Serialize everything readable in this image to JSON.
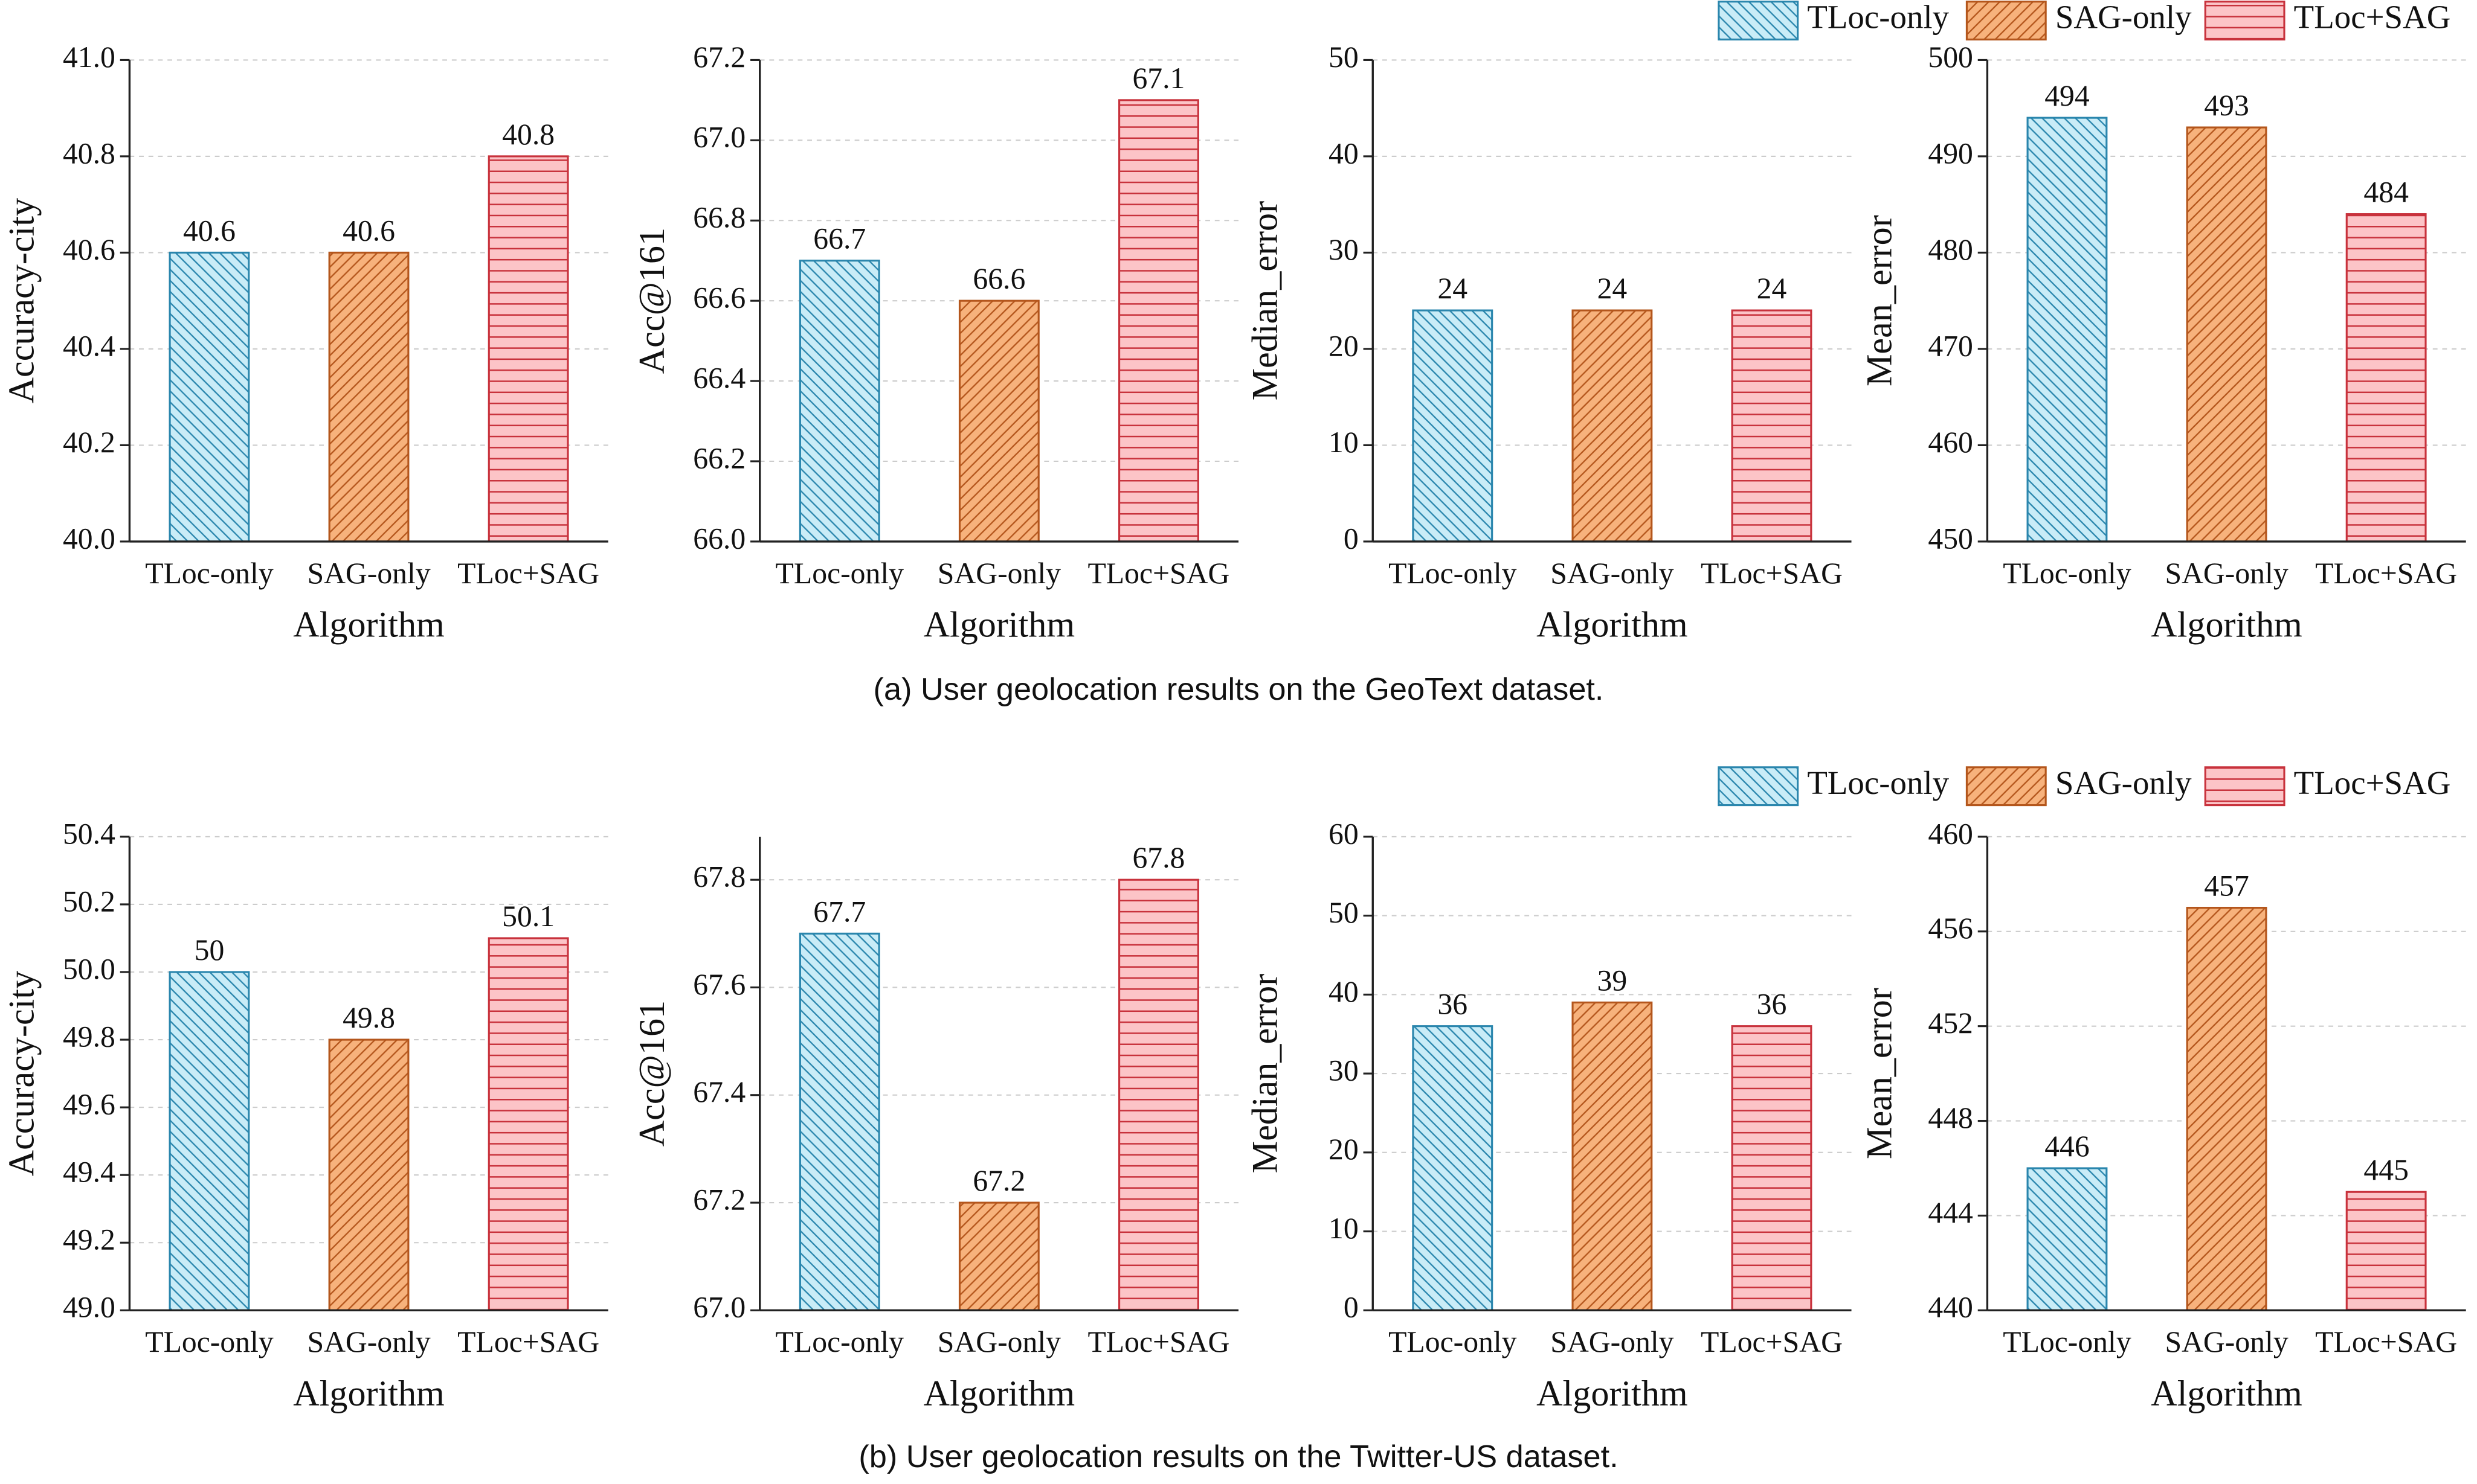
{
  "chart_data": [
    {
      "type": "bar",
      "ylabel": "Accuracy-city",
      "xlabel": "Algorithm",
      "categories": [
        "TLoc-only",
        "SAG-only",
        "TLoc+SAG"
      ],
      "values": [
        40.6,
        40.6,
        40.8
      ],
      "colors": [
        "#c9ecf7",
        "#f7b27c",
        "#fcc4c7"
      ],
      "edge_colors": [
        "#2a86ad",
        "#b4561c",
        "#c8323c"
      ],
      "hatches": [
        "backslash",
        "slash",
        "horizontal"
      ],
      "ylim": [
        40,
        41
      ],
      "yticks": [
        {
          "value": 40,
          "label": "40.0"
        },
        40.2,
        40.4,
        40.6,
        40.8,
        {
          "value": 41,
          "label": "41.0"
        }
      ],
      "grid": true
    },
    {
      "type": "bar",
      "ylabel": "Acc@161",
      "xlabel": "Algorithm",
      "categories": [
        "TLoc-only",
        "SAG-only",
        "TLoc+SAG"
      ],
      "values": [
        66.7,
        66.6,
        67.1
      ],
      "colors": [
        "#c9ecf7",
        "#f7b27c",
        "#fcc4c7"
      ],
      "edge_colors": [
        "#2a86ad",
        "#b4561c",
        "#c8323c"
      ],
      "hatches": [
        "backslash",
        "slash",
        "horizontal"
      ],
      "ylim": [
        66,
        67.2
      ],
      "yticks": [
        {
          "value": 66,
          "label": "66.0"
        },
        66.2,
        66.4,
        66.6,
        66.8,
        {
          "value": 67,
          "label": "67.0"
        },
        67.2
      ],
      "grid": true
    },
    {
      "type": "bar",
      "ylabel": "Median_error",
      "xlabel": "Algorithm",
      "categories": [
        "TLoc-only",
        "SAG-only",
        "TLoc+SAG"
      ],
      "values": [
        24,
        24,
        24
      ],
      "colors": [
        "#c9ecf7",
        "#f7b27c",
        "#fcc4c7"
      ],
      "edge_colors": [
        "#2a86ad",
        "#b4561c",
        "#c8323c"
      ],
      "hatches": [
        "backslash",
        "slash",
        "horizontal"
      ],
      "ylim": [
        0,
        50
      ],
      "yticks": [
        0,
        10,
        20,
        30,
        40,
        50
      ],
      "grid": true
    },
    {
      "type": "bar",
      "ylabel": "Mean_error",
      "xlabel": "Algorithm",
      "categories": [
        "TLoc-only",
        "SAG-only",
        "TLoc+SAG"
      ],
      "values": [
        494,
        493,
        484
      ],
      "colors": [
        "#c9ecf7",
        "#f7b27c",
        "#fcc4c7"
      ],
      "edge_colors": [
        "#2a86ad",
        "#b4561c",
        "#c8323c"
      ],
      "hatches": [
        "backslash",
        "slash",
        "horizontal"
      ],
      "ylim": [
        450,
        500
      ],
      "yticks": [
        450,
        460,
        470,
        480,
        490,
        500
      ],
      "grid": true,
      "legend": [
        "TLoc-only",
        "SAG-only",
        "TLoc+SAG"
      ]
    },
    {
      "type": "bar",
      "ylabel": "Accuracy-city",
      "xlabel": "Algorithm",
      "categories": [
        "TLoc-only",
        "SAG-only",
        "TLoc+SAG"
      ],
      "values": [
        50,
        49.8,
        50.1
      ],
      "colors": [
        "#c9ecf7",
        "#f7b27c",
        "#fcc4c7"
      ],
      "edge_colors": [
        "#2a86ad",
        "#b4561c",
        "#c8323c"
      ],
      "hatches": [
        "backslash",
        "slash",
        "horizontal"
      ],
      "ylim": [
        49,
        50.4
      ],
      "yticks": [
        {
          "value": 49,
          "label": "49.0"
        },
        49.2,
        49.4,
        49.6,
        49.8,
        {
          "value": 50,
          "label": "50.0"
        },
        50.2,
        50.4
      ],
      "grid": true
    },
    {
      "type": "bar",
      "ylabel": "Acc@161",
      "xlabel": "Algorithm",
      "categories": [
        "TLoc-only",
        "SAG-only",
        "TLoc+SAG"
      ],
      "values": [
        67.7,
        67.2,
        67.8
      ],
      "colors": [
        "#c9ecf7",
        "#f7b27c",
        "#fcc4c7"
      ],
      "edge_colors": [
        "#2a86ad",
        "#b4561c",
        "#c8323c"
      ],
      "hatches": [
        "backslash",
        "slash",
        "horizontal"
      ],
      "ylim": [
        67,
        67.88
      ],
      "yticks": [
        {
          "value": 67,
          "label": "67.0"
        },
        67.2,
        67.4,
        67.6,
        67.8
      ],
      "grid": true
    },
    {
      "type": "bar",
      "ylabel": "Median_error",
      "xlabel": "Algorithm",
      "categories": [
        "TLoc-only",
        "SAG-only",
        "TLoc+SAG"
      ],
      "values": [
        36,
        39,
        36
      ],
      "colors": [
        "#c9ecf7",
        "#f7b27c",
        "#fcc4c7"
      ],
      "edge_colors": [
        "#2a86ad",
        "#b4561c",
        "#c8323c"
      ],
      "hatches": [
        "backslash",
        "slash",
        "horizontal"
      ],
      "ylim": [
        0,
        60
      ],
      "yticks": [
        0,
        10,
        20,
        30,
        40,
        50,
        60
      ],
      "grid": true
    },
    {
      "type": "bar",
      "ylabel": "Mean_error",
      "xlabel": "Algorithm",
      "categories": [
        "TLoc-only",
        "SAG-only",
        "TLoc+SAG"
      ],
      "values": [
        446,
        457,
        445
      ],
      "colors": [
        "#c9ecf7",
        "#f7b27c",
        "#fcc4c7"
      ],
      "edge_colors": [
        "#2a86ad",
        "#b4561c",
        "#c8323c"
      ],
      "hatches": [
        "backslash",
        "slash",
        "horizontal"
      ],
      "ylim": [
        440,
        460
      ],
      "yticks": [
        440,
        444,
        448,
        452,
        456,
        460
      ],
      "grid": true,
      "legend": [
        "TLoc-only",
        "SAG-only",
        "TLoc+SAG"
      ]
    }
  ],
  "captions": [
    "(a) User geolocation results on the GeoText dataset.",
    "(b) User geolocation results on the Twitter-US dataset."
  ]
}
